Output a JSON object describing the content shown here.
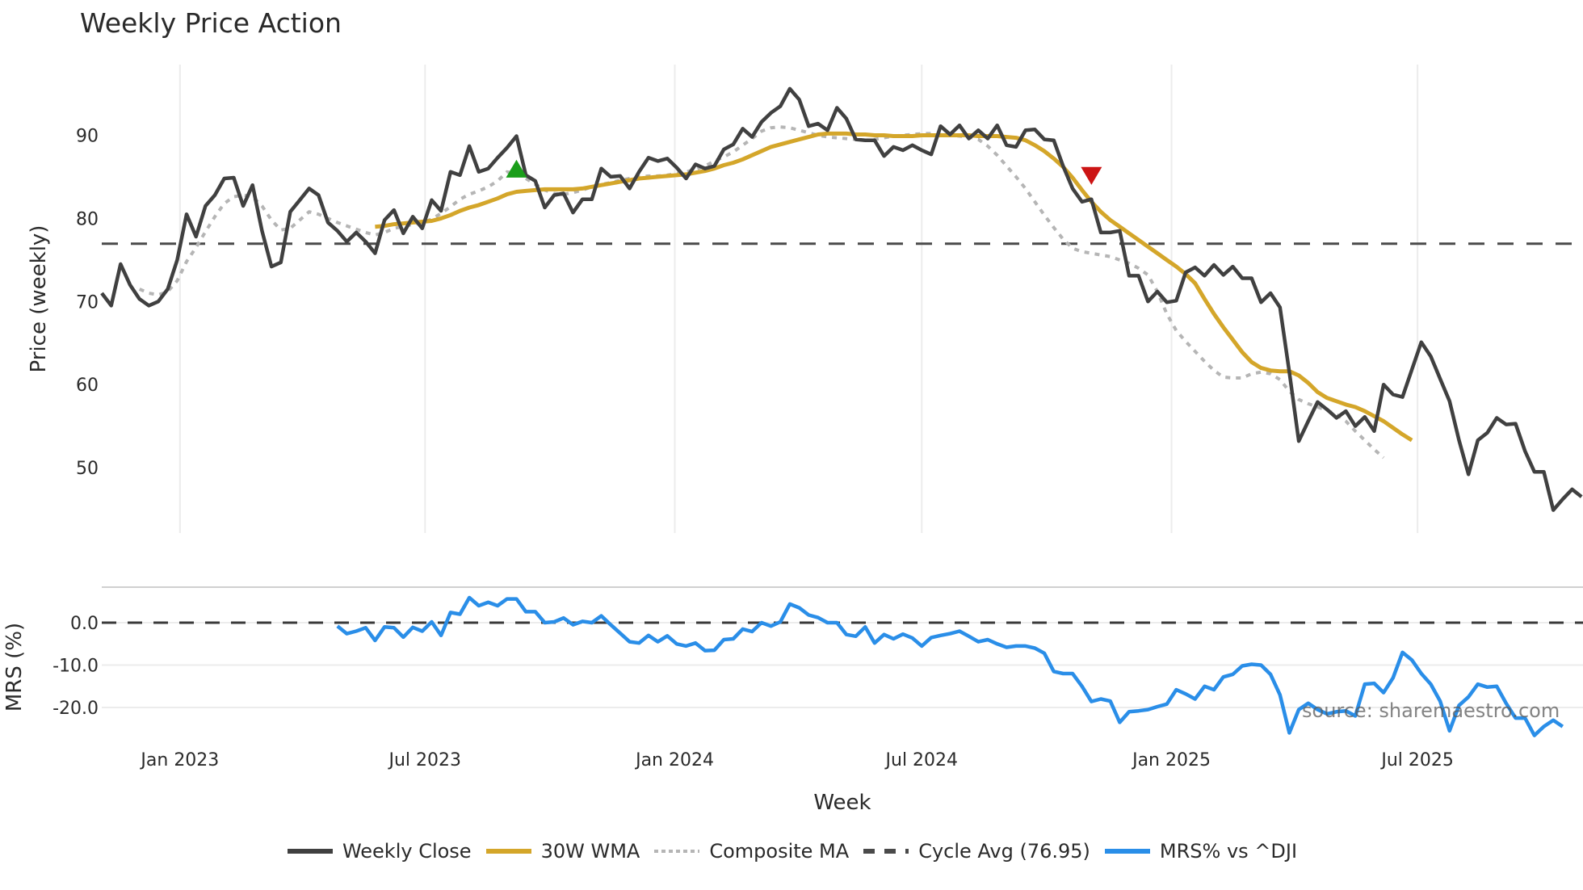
{
  "title": "Weekly Price Action",
  "watermark": "source: sharemaestro.com",
  "colors": {
    "weekly_close": "#404040",
    "wma30": "#d4a62a",
    "composite_ma": "#b5b5b5",
    "cycle_avg": "#4a4a4a",
    "mrs": "#2a8ee8",
    "buy_marker": "#1a9e1a",
    "sell_marker": "#cc1414",
    "grid": "#ececec"
  },
  "legend": [
    {
      "key": "weekly_close",
      "label": "Weekly Close",
      "style": "solid"
    },
    {
      "key": "wma30",
      "label": "30W WMA",
      "style": "solid"
    },
    {
      "key": "composite_ma",
      "label": "Composite MA",
      "style": "dotted"
    },
    {
      "key": "cycle_avg",
      "label": "Cycle Avg (76.95)",
      "style": "dashed"
    },
    {
      "key": "mrs",
      "label": "MRS% vs ^DJI",
      "style": "solid"
    }
  ],
  "chart_data": [
    {
      "type": "line",
      "title": "Weekly Price Action",
      "xlabel": "Week",
      "ylabel": "Price (weekly)",
      "ylim": [
        42.5,
        98.5
      ],
      "yticks": [
        50,
        60,
        70,
        80,
        90
      ],
      "xtick_labels": [
        "Jan 2023",
        "Jul 2023",
        "Jan 2024",
        "Jul 2024",
        "Jan 2025",
        "Jul 2025"
      ],
      "xtick_week_index": [
        8.3,
        34.3,
        60.8,
        87.0,
        113.5,
        139.6
      ],
      "grid": "vertical",
      "x_start_week_index": 0,
      "series": [
        {
          "name": "Weekly Close",
          "start_index": 0,
          "values": [
            71.0,
            69.5,
            74.5,
            72.0,
            70.3,
            69.5,
            70.0,
            71.5,
            75.0,
            80.5,
            77.8,
            81.5,
            82.8,
            84.8,
            84.9,
            81.5,
            84.0,
            78.5,
            74.2,
            74.7,
            80.8,
            82.2,
            83.6,
            82.8,
            79.5,
            78.5,
            77.2,
            78.3,
            77.2,
            75.8,
            79.8,
            81.0,
            78.2,
            80.2,
            78.8,
            82.2,
            80.9,
            85.6,
            85.2,
            88.7,
            85.6,
            86.0,
            87.3,
            88.5,
            89.9,
            85.2,
            84.5,
            81.3,
            82.8,
            83.0,
            80.7,
            82.3,
            82.3,
            86.0,
            85.0,
            85.1,
            83.6,
            85.6,
            87.3,
            86.9,
            87.2,
            86.1,
            84.8,
            86.5,
            86.0,
            86.3,
            88.3,
            88.9,
            90.8,
            89.8,
            91.6,
            92.7,
            93.5,
            95.6,
            94.3,
            91.1,
            91.4,
            90.6,
            93.3,
            92.0,
            89.5,
            89.4,
            89.4,
            87.5,
            88.6,
            88.2,
            88.8,
            88.2,
            87.7,
            91.1,
            90.1,
            91.2,
            89.6,
            90.6,
            89.6,
            91.2,
            88.8,
            88.6,
            90.6,
            90.7,
            89.5,
            89.4,
            86.3,
            83.6,
            82.0,
            82.3,
            78.3,
            78.3,
            78.5,
            73.1,
            73.1,
            70.0,
            71.2,
            69.9,
            70.1,
            73.5,
            74.1,
            73.1,
            74.4,
            73.2,
            74.2,
            72.8,
            72.8,
            69.9,
            71.0,
            69.3,
            61.5,
            53.2,
            55.6,
            57.9,
            57.0,
            56.0,
            56.8,
            55.0,
            56.1,
            54.4,
            60.0,
            58.8,
            58.5,
            61.8,
            65.1,
            63.4,
            60.7,
            58.0,
            53.3,
            49.2,
            53.3,
            54.2,
            56.0,
            55.2,
            55.3,
            52.0,
            49.5,
            49.5,
            44.9,
            46.2,
            47.4,
            46.5
          ]
        },
        {
          "name": "30W WMA",
          "start_index": 29,
          "values": [
            79.0,
            79.1,
            79.3,
            79.4,
            79.5,
            79.6,
            79.7,
            80.0,
            80.4,
            80.9,
            81.3,
            81.6,
            82.0,
            82.4,
            82.9,
            83.2,
            83.3,
            83.4,
            83.5,
            83.5,
            83.5,
            83.5,
            83.6,
            83.8,
            84.0,
            84.2,
            84.4,
            84.6,
            84.8,
            84.9,
            85.0,
            85.1,
            85.2,
            85.3,
            85.5,
            85.7,
            86.0,
            86.4,
            86.7,
            87.1,
            87.6,
            88.1,
            88.6,
            88.9,
            89.2,
            89.5,
            89.8,
            90.1,
            90.2,
            90.2,
            90.2,
            90.1,
            90.1,
            90.0,
            90.0,
            89.9,
            89.9,
            89.9,
            90.0,
            90.0,
            90.0,
            90.0,
            90.0,
            90.0,
            89.9,
            89.9,
            89.9,
            89.8,
            89.7,
            89.4,
            88.8,
            88.1,
            87.2,
            86.2,
            84.9,
            83.4,
            82.0,
            80.8,
            79.8,
            79.0,
            78.2,
            77.4,
            76.6,
            75.8,
            75.0,
            74.2,
            73.3,
            72.2,
            70.3,
            68.5,
            66.9,
            65.4,
            63.9,
            62.7,
            62.0,
            61.7,
            61.6,
            61.6,
            61.1,
            60.2,
            59.1,
            58.4,
            58.0,
            57.6,
            57.3,
            56.8,
            56.2,
            55.6,
            54.8,
            54.0,
            53.3
          ]
        },
        {
          "name": "Composite MA",
          "start_index": 4,
          "values": [
            71.5,
            71.0,
            70.8,
            71.2,
            72.5,
            74.8,
            76.5,
            78.4,
            80.2,
            81.8,
            82.6,
            82.8,
            82.6,
            81.5,
            79.8,
            78.6,
            78.8,
            79.8,
            80.8,
            80.5,
            80.0,
            79.5,
            79.1,
            78.7,
            78.3,
            78.0,
            78.3,
            78.8,
            79.0,
            79.3,
            79.5,
            79.9,
            80.6,
            81.4,
            82.3,
            82.9,
            83.3,
            83.8,
            84.5,
            85.6,
            85.4,
            84.8,
            84.1,
            83.4,
            83.0,
            82.9,
            83.1,
            83.4,
            83.8,
            84.1,
            84.3,
            84.6,
            84.8,
            85.0,
            85.1,
            85.1,
            85.2,
            85.4,
            85.6,
            85.9,
            86.3,
            86.9,
            87.4,
            88.0,
            88.8,
            89.6,
            90.5,
            90.9,
            91.0,
            90.9,
            90.6,
            90.3,
            90.0,
            89.8,
            89.7,
            89.6,
            89.5,
            89.4,
            89.5,
            89.7,
            89.9,
            90.0,
            90.1,
            90.2,
            90.2,
            90.1,
            90.0,
            89.9,
            89.8,
            89.5,
            88.7,
            87.6,
            86.3,
            85.0,
            83.6,
            82.0,
            80.4,
            78.9,
            77.5,
            76.4,
            76.0,
            75.8,
            75.6,
            75.4,
            75.0,
            74.6,
            74.0,
            73.2,
            71.2,
            68.5,
            66.5,
            65.2,
            64.0,
            62.8,
            61.7,
            60.9,
            60.8,
            60.8,
            61.3,
            61.5,
            61.3,
            60.6,
            59.2,
            58.2,
            57.7,
            57.3,
            56.9,
            56.4,
            55.6,
            54.4,
            53.3,
            52.2,
            51.2
          ]
        },
        {
          "name": "Cycle Avg (76.95)",
          "constant": 76.95
        }
      ],
      "markers": [
        {
          "type": "buy",
          "shape": "triangle-up",
          "week_index": 44,
          "value": 85.8
        },
        {
          "type": "sell",
          "shape": "triangle-down",
          "week_index": 105,
          "value": 85.3
        }
      ]
    },
    {
      "type": "line",
      "xlabel": "Week",
      "ylabel": "MRS (%)",
      "ylim": [
        -27.5,
        8.5
      ],
      "yticks": [
        0.0,
        -10.0,
        -20.0
      ],
      "ytick_labels": [
        "0.0",
        "-10.0",
        "-20.0"
      ],
      "reference_line": 0.0,
      "series": [
        {
          "name": "MRS% vs ^DJI",
          "start_index": 25,
          "values": [
            -0.8,
            -2.6,
            -2.0,
            -1.2,
            -4.2,
            -1.0,
            -1.2,
            -3.4,
            -1.1,
            -2.0,
            0.2,
            -3.0,
            2.4,
            2.0,
            5.9,
            4.0,
            4.8,
            4.0,
            5.6,
            5.6,
            2.6,
            2.6,
            0.0,
            0.2,
            1.1,
            -0.5,
            0.3,
            0.0,
            1.6,
            -0.5,
            -2.5,
            -4.5,
            -4.8,
            -3.0,
            -4.5,
            -3.1,
            -5.0,
            -5.5,
            -4.8,
            -6.6,
            -6.5,
            -4.0,
            -3.8,
            -1.5,
            -2.1,
            0.0,
            -0.8,
            0.2,
            4.4,
            3.5,
            1.8,
            1.2,
            0.0,
            0.0,
            -2.8,
            -3.2,
            -1.0,
            -4.8,
            -2.8,
            -3.8,
            -2.7,
            -3.6,
            -5.5,
            -3.5,
            -3.0,
            -2.6,
            -2.0,
            -3.2,
            -4.5,
            -4.0,
            -5.0,
            -5.8,
            -5.5,
            -5.5,
            -6.0,
            -7.2,
            -11.5,
            -12.0,
            -12.0,
            -15.0,
            -18.6,
            -18.0,
            -18.5,
            -23.5,
            -21.0,
            -20.8,
            -20.5,
            -19.8,
            -19.2,
            -15.8,
            -16.8,
            -18.0,
            -15.0,
            -15.8,
            -12.8,
            -12.2,
            -10.2,
            -9.8,
            -10.0,
            -12.2,
            -17.0,
            -26.0,
            -20.5,
            -19.0,
            -20.5,
            -21.5,
            -21.0,
            -20.8,
            -22.0,
            -14.5,
            -14.3,
            -16.5,
            -13.0,
            -7.0,
            -8.8,
            -12.0,
            -14.5,
            -18.5,
            -25.5,
            -19.5,
            -17.5,
            -14.5,
            -15.2,
            -15.0,
            -19.0,
            -22.5,
            -22.5,
            -26.6,
            -24.5,
            -23.0,
            -24.5
          ]
        }
      ]
    }
  ]
}
